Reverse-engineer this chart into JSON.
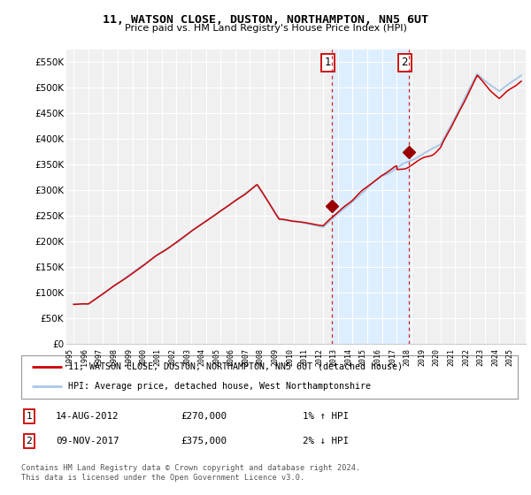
{
  "title": "11, WATSON CLOSE, DUSTON, NORTHAMPTON, NN5 6UT",
  "subtitle": "Price paid vs. HM Land Registry's House Price Index (HPI)",
  "legend_line1": "11, WATSON CLOSE, DUSTON, NORTHAMPTON, NN5 6UT (detached house)",
  "legend_line2": "HPI: Average price, detached house, West Northamptonshire",
  "annotation1_label": "1",
  "annotation1_date": "14-AUG-2012",
  "annotation1_price": "£270,000",
  "annotation1_hpi": "1% ↑ HPI",
  "annotation2_label": "2",
  "annotation2_date": "09-NOV-2017",
  "annotation2_price": "£375,000",
  "annotation2_hpi": "2% ↓ HPI",
  "footnote": "Contains HM Land Registry data © Crown copyright and database right 2024.\nThis data is licensed under the Open Government Licence v3.0.",
  "hpi_color": "#a8c8e8",
  "price_color": "#cc0000",
  "marker_color": "#990000",
  "background_color": "#ffffff",
  "plot_bg_color": "#f0f0f0",
  "grid_color": "#ffffff",
  "highlight_color": "#ddeeff",
  "ylim": [
    0,
    575000
  ],
  "yticks": [
    0,
    50000,
    100000,
    150000,
    200000,
    250000,
    300000,
    350000,
    400000,
    450000,
    500000,
    550000
  ],
  "xtick_years": [
    1995,
    1996,
    1997,
    1998,
    1999,
    2000,
    2001,
    2002,
    2003,
    2004,
    2005,
    2006,
    2007,
    2008,
    2009,
    2010,
    2011,
    2012,
    2013,
    2014,
    2015,
    2016,
    2017,
    2018,
    2019,
    2020,
    2021,
    2022,
    2023,
    2024,
    2025
  ],
  "sale1_year": 2012.62,
  "sale1_price": 270000,
  "sale2_year": 2017.86,
  "sale2_price": 375000,
  "highlight_start": 2012.62,
  "highlight_end": 2017.86
}
